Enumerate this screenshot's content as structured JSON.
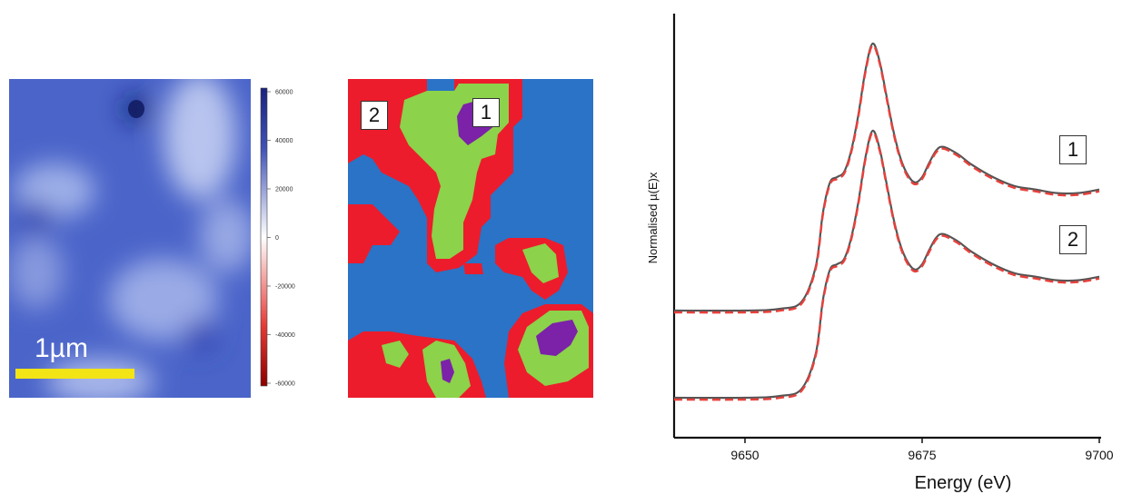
{
  "figure": {
    "scale_bar_label": "1µm",
    "colorbar": {
      "ticks": [
        "60000",
        "40000",
        "20000",
        "0",
        "-20000",
        "-40000",
        "-60000"
      ],
      "range": [
        -60000,
        60000
      ],
      "colors": {
        "top": "#1a237e",
        "mid": "#ffffff",
        "bottom": "#8b0000"
      }
    },
    "cluster_map": {
      "labels": [
        "1",
        "2"
      ],
      "colors": {
        "blue": "#2a73c6",
        "red": "#ec1c2c",
        "green": "#8cd24a",
        "purple": "#7b22a8"
      }
    },
    "intensity_map_color": "#4b63c8",
    "scale_bar_color": "#f2e415"
  },
  "chart_data": {
    "type": "line",
    "xlabel": "Energy (eV)",
    "ylabel": "Normalised µ(E)x",
    "xlim": [
      9640,
      9700
    ],
    "x_ticks": [
      9650,
      9675,
      9700
    ],
    "grid": false,
    "series": [
      {
        "name": "1",
        "offset": 1.0,
        "points": [
          [
            9640,
            0.0
          ],
          [
            9650,
            0.0
          ],
          [
            9655,
            0.01
          ],
          [
            9658,
            0.05
          ],
          [
            9660,
            0.25
          ],
          [
            9661,
            0.55
          ],
          [
            9662,
            0.72
          ],
          [
            9663,
            0.75
          ],
          [
            9664,
            0.78
          ],
          [
            9665,
            0.9
          ],
          [
            9666,
            1.1
          ],
          [
            9667,
            1.35
          ],
          [
            9668,
            1.5
          ],
          [
            9669,
            1.4
          ],
          [
            9670,
            1.2
          ],
          [
            9671,
            1.0
          ],
          [
            9672,
            0.85
          ],
          [
            9673,
            0.76
          ],
          [
            9674,
            0.72
          ],
          [
            9675,
            0.75
          ],
          [
            9676,
            0.83
          ],
          [
            9677,
            0.9
          ],
          [
            9678,
            0.92
          ],
          [
            9680,
            0.88
          ],
          [
            9682,
            0.82
          ],
          [
            9685,
            0.75
          ],
          [
            9688,
            0.7
          ],
          [
            9691,
            0.68
          ],
          [
            9694,
            0.66
          ],
          [
            9697,
            0.66
          ],
          [
            9700,
            0.68
          ]
        ],
        "colors": {
          "measured": "#555555",
          "fit": "#e8413c"
        }
      },
      {
        "name": "2",
        "offset": 0.0,
        "points": [
          [
            9640,
            0.0
          ],
          [
            9650,
            0.0
          ],
          [
            9655,
            0.01
          ],
          [
            9658,
            0.05
          ],
          [
            9660,
            0.25
          ],
          [
            9661,
            0.55
          ],
          [
            9662,
            0.72
          ],
          [
            9663,
            0.75
          ],
          [
            9664,
            0.78
          ],
          [
            9665,
            0.9
          ],
          [
            9666,
            1.1
          ],
          [
            9667,
            1.35
          ],
          [
            9668,
            1.5
          ],
          [
            9669,
            1.4
          ],
          [
            9670,
            1.2
          ],
          [
            9671,
            1.0
          ],
          [
            9672,
            0.85
          ],
          [
            9673,
            0.76
          ],
          [
            9674,
            0.72
          ],
          [
            9675,
            0.75
          ],
          [
            9676,
            0.83
          ],
          [
            9677,
            0.9
          ],
          [
            9678,
            0.92
          ],
          [
            9680,
            0.88
          ],
          [
            9682,
            0.82
          ],
          [
            9685,
            0.75
          ],
          [
            9688,
            0.7
          ],
          [
            9691,
            0.68
          ],
          [
            9694,
            0.66
          ],
          [
            9697,
            0.66
          ],
          [
            9700,
            0.68
          ]
        ],
        "colors": {
          "measured": "#555555",
          "fit": "#e8413c"
        }
      }
    ]
  }
}
